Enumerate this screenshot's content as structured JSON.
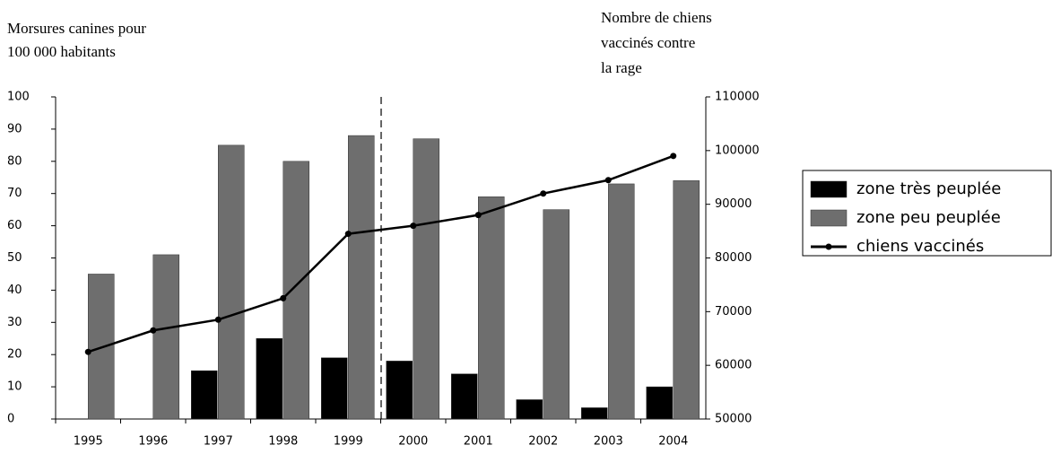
{
  "chart_data": {
    "type": "bar",
    "y_label": [
      "Morsures canines pour",
      "100 000 habitants"
    ],
    "y2_label": [
      "Nombre de chiens",
      "vaccinés contre",
      "la rage"
    ],
    "categories": [
      "1995",
      "1996",
      "1997",
      "1998",
      "1999",
      "2000",
      "2001",
      "2002",
      "2003",
      "2004"
    ],
    "series": [
      {
        "name": "zone très peuplée",
        "type": "bar",
        "color": "#000000",
        "values": [
          0,
          0,
          15,
          25,
          19,
          18,
          14,
          6,
          3.5,
          10
        ]
      },
      {
        "name": "zone peu peuplée",
        "type": "bar",
        "color": "#6e6e6e",
        "values": [
          45,
          51,
          85,
          80,
          88,
          87,
          69,
          65,
          73,
          74
        ]
      },
      {
        "name": "chiens vaccinés",
        "type": "line",
        "axis": "y2",
        "color": "#000000",
        "values": [
          62500,
          66500,
          68500,
          72500,
          84500,
          86000,
          88000,
          92000,
          94500,
          99000
        ]
      }
    ],
    "ylim": [
      0,
      100
    ],
    "yticks": [
      0,
      10,
      20,
      30,
      40,
      50,
      60,
      70,
      80,
      90,
      100
    ],
    "y2lim": [
      50000,
      110000
    ],
    "y2ticks": [
      50000,
      60000,
      70000,
      80000,
      90000,
      100000,
      110000
    ],
    "legend": "right"
  }
}
